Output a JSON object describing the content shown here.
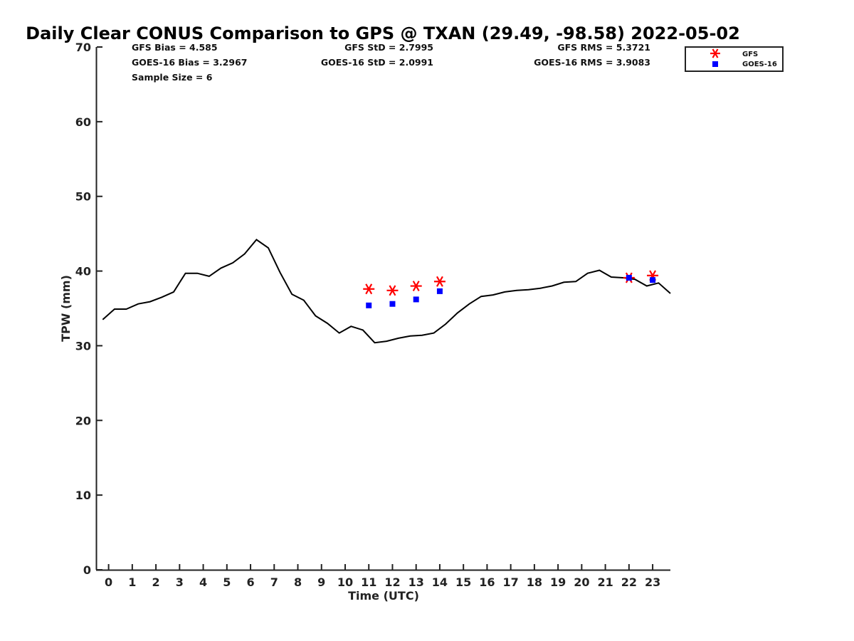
{
  "chart_data": {
    "type": "line",
    "title": "Daily Clear CONUS Comparison to GPS @ TXAN (29.49, -98.58) 2022-05-02",
    "xlabel": "Time (UTC)",
    "ylabel": "TPW (mm)",
    "xlim": [
      -0.5,
      23.75
    ],
    "ylim": [
      0,
      70
    ],
    "x_ticks": [
      "0",
      "1",
      "2",
      "3",
      "4",
      "5",
      "6",
      "7",
      "8",
      "9",
      "10",
      "11",
      "12",
      "13",
      "14",
      "15",
      "16",
      "17",
      "18",
      "19",
      "20",
      "21",
      "22",
      "23"
    ],
    "y_ticks": [
      "0",
      "10",
      "20",
      "30",
      "40",
      "50",
      "60",
      "70"
    ],
    "grid": false,
    "legend_position": "top-right",
    "stats": [
      {
        "text": "GFS Bias = 4.585"
      },
      {
        "text": "GFS StD = 2.7995"
      },
      {
        "text": "GFS RMS = 5.3721"
      },
      {
        "text": "GOES-16 Bias = 3.2967"
      },
      {
        "text": "GOES-16 StD = 2.0991"
      },
      {
        "text": "GOES-16 RMS = 3.9083"
      },
      {
        "text": "Sample Size = 6"
      }
    ],
    "series": [
      {
        "style": "line",
        "color": "#000000",
        "x": [
          -0.25,
          0.25,
          0.75,
          1.25,
          1.75,
          2.25,
          2.75,
          3.25,
          3.75,
          4.25,
          4.75,
          5.25,
          5.75,
          6.25,
          6.75,
          7.25,
          7.75,
          8.25,
          8.75,
          9.25,
          9.75,
          10.25,
          10.75,
          11.25,
          11.75,
          12.25,
          12.75,
          13.25,
          13.75,
          14.25,
          14.75,
          15.25,
          15.75,
          16.25,
          16.75,
          17.25,
          17.75,
          18.25,
          18.75,
          19.25,
          19.75,
          20.25,
          20.75,
          21.25,
          21.75,
          22.25,
          22.75,
          23.25,
          23.75
        ],
        "values": [
          33.5,
          34.9,
          34.9,
          35.6,
          35.9,
          36.5,
          37.2,
          39.7,
          39.7,
          39.3,
          40.4,
          41.1,
          42.3,
          44.2,
          43.1,
          39.8,
          36.9,
          36.1,
          34.0,
          33.0,
          31.7,
          32.6,
          32.1,
          30.4,
          30.6,
          31.0,
          31.3,
          31.4,
          31.7,
          32.9,
          34.4,
          35.6,
          36.6,
          36.8,
          37.2,
          37.4,
          37.5,
          37.7,
          38.0,
          38.5,
          38.6,
          39.7,
          40.1,
          39.2,
          39.1,
          38.9,
          38.0,
          38.4,
          37.0
        ]
      },
      {
        "name": "GFS",
        "style": "asterisk",
        "color": "#ff0000",
        "x": [
          11,
          12,
          13,
          14,
          22,
          23
        ],
        "values": [
          37.6,
          37.4,
          38.0,
          38.6,
          39.1,
          39.4
        ]
      },
      {
        "name": "GOES-16",
        "style": "square",
        "color": "#0000ff",
        "x": [
          11,
          12,
          13,
          14,
          22,
          23
        ],
        "values": [
          35.4,
          35.6,
          36.2,
          37.3,
          39.1,
          38.8
        ]
      }
    ]
  }
}
